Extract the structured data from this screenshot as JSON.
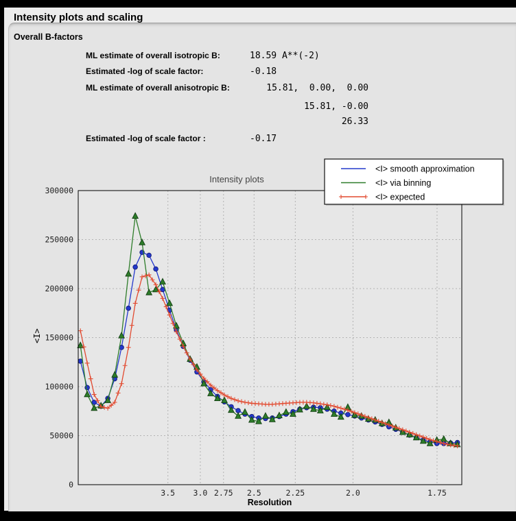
{
  "window": {
    "title": "Intensity plots and scaling"
  },
  "section": {
    "heading": "Overall B-factors",
    "rows": [
      {
        "label": "ML estimate of overall isotropic B:",
        "value": "18.59 A**(-2)"
      },
      {
        "label": "Estimated -log of scale factor:",
        "value": "-0.18"
      },
      {
        "label": "ML estimate of overall anisotropic B:",
        "value": "15.81,  0.00,  0.00"
      },
      {
        "label": "",
        "value": "15.81, -0.00"
      },
      {
        "label": "",
        "value": "26.33"
      },
      {
        "label": "Estimated -log of scale factor :",
        "value": "-0.17"
      }
    ]
  },
  "chart_data": {
    "type": "line",
    "title": "Intensity plots",
    "xlabel": "Resolution",
    "ylabel": "<I>",
    "x_units": "1/d^2",
    "xlim": [
      0,
      0.349
    ],
    "ylim": [
      0,
      300000
    ],
    "yticks": [
      0,
      50000,
      100000,
      150000,
      200000,
      250000,
      300000
    ],
    "xticks": [
      {
        "label": "3.5",
        "s": 0.0816
      },
      {
        "label": "3.0",
        "s": 0.1111
      },
      {
        "label": "2.75",
        "s": 0.1322
      },
      {
        "label": "2.5",
        "s": 0.16
      },
      {
        "label": "2.25",
        "s": 0.1975
      },
      {
        "label": "2.0",
        "s": 0.25
      },
      {
        "label": "1.75",
        "s": 0.3265
      }
    ],
    "grid": "dashed",
    "legend_position": "upper right",
    "x": [
      0.002,
      0.0082,
      0.0145,
      0.0207,
      0.0269,
      0.0332,
      0.0394,
      0.0457,
      0.0519,
      0.0581,
      0.0644,
      0.0706,
      0.0768,
      0.0831,
      0.0893,
      0.0956,
      0.1018,
      0.108,
      0.1143,
      0.1205,
      0.1267,
      0.133,
      0.1392,
      0.1455,
      0.1517,
      0.1579,
      0.1642,
      0.1704,
      0.1766,
      0.1829,
      0.1891,
      0.1954,
      0.2016,
      0.2078,
      0.2141,
      0.2203,
      0.2265,
      0.2328,
      0.239,
      0.2453,
      0.2515,
      0.2577,
      0.264,
      0.2702,
      0.2764,
      0.2827,
      0.2889,
      0.2952,
      0.3014,
      0.3076,
      0.3139,
      0.3201,
      0.3263,
      0.3326,
      0.3388,
      0.345
    ],
    "series": [
      {
        "name": "<I> smooth approximation",
        "color": "#2438cc",
        "marker": "circle",
        "values": [
          126000,
          99000,
          84000,
          80000,
          88000,
          108000,
          140000,
          180000,
          222000,
          237000,
          234000,
          220000,
          199000,
          178000,
          158000,
          141000,
          127000,
          115000,
          105000,
          97000,
          90000,
          84500,
          79500,
          75500,
          72000,
          69500,
          68000,
          67500,
          68000,
          69500,
          72000,
          74500,
          77000,
          78500,
          79000,
          78500,
          77000,
          75000,
          73000,
          71500,
          70000,
          68000,
          66000,
          64000,
          61500,
          59000,
          56500,
          53500,
          50500,
          48000,
          45500,
          43500,
          42000,
          42000,
          42500,
          43000
        ]
      },
      {
        "name": "<I> via binning",
        "color": "#2e7d2a",
        "marker": "triangle",
        "values": [
          142000,
          92000,
          78000,
          80500,
          86000,
          112000,
          152000,
          215000,
          274000,
          247000,
          196000,
          199000,
          207000,
          185000,
          162000,
          144000,
          128000,
          120000,
          103000,
          93000,
          88000,
          86000,
          76000,
          70000,
          74000,
          66000,
          64500,
          70000,
          66500,
          70500,
          74000,
          72000,
          76500,
          80000,
          77000,
          75500,
          79000,
          72000,
          69000,
          79000,
          71000,
          70000,
          67000,
          66000,
          62500,
          63500,
          58000,
          53500,
          51000,
          48000,
          44500,
          42000,
          45500,
          46500,
          42000,
          41000
        ]
      },
      {
        "name": "<I> expected",
        "color": "#e2492f",
        "marker": "plus",
        "values": [
          157000,
          124000,
          92000,
          79500,
          78000,
          84000,
          103000,
          140000,
          185000,
          212000,
          214000,
          204000,
          190000,
          173000,
          156000,
          141000,
          128000,
          117000,
          108500,
          101500,
          96000,
          91500,
          88000,
          85500,
          84000,
          83000,
          82500,
          82000,
          82000,
          82500,
          83000,
          83500,
          84000,
          84000,
          83500,
          82500,
          81500,
          80000,
          78000,
          76000,
          73500,
          71000,
          68500,
          66000,
          63500,
          61000,
          58500,
          56000,
          53500,
          51000,
          48500,
          46000,
          44000,
          42000,
          40500,
          39500
        ]
      }
    ]
  }
}
